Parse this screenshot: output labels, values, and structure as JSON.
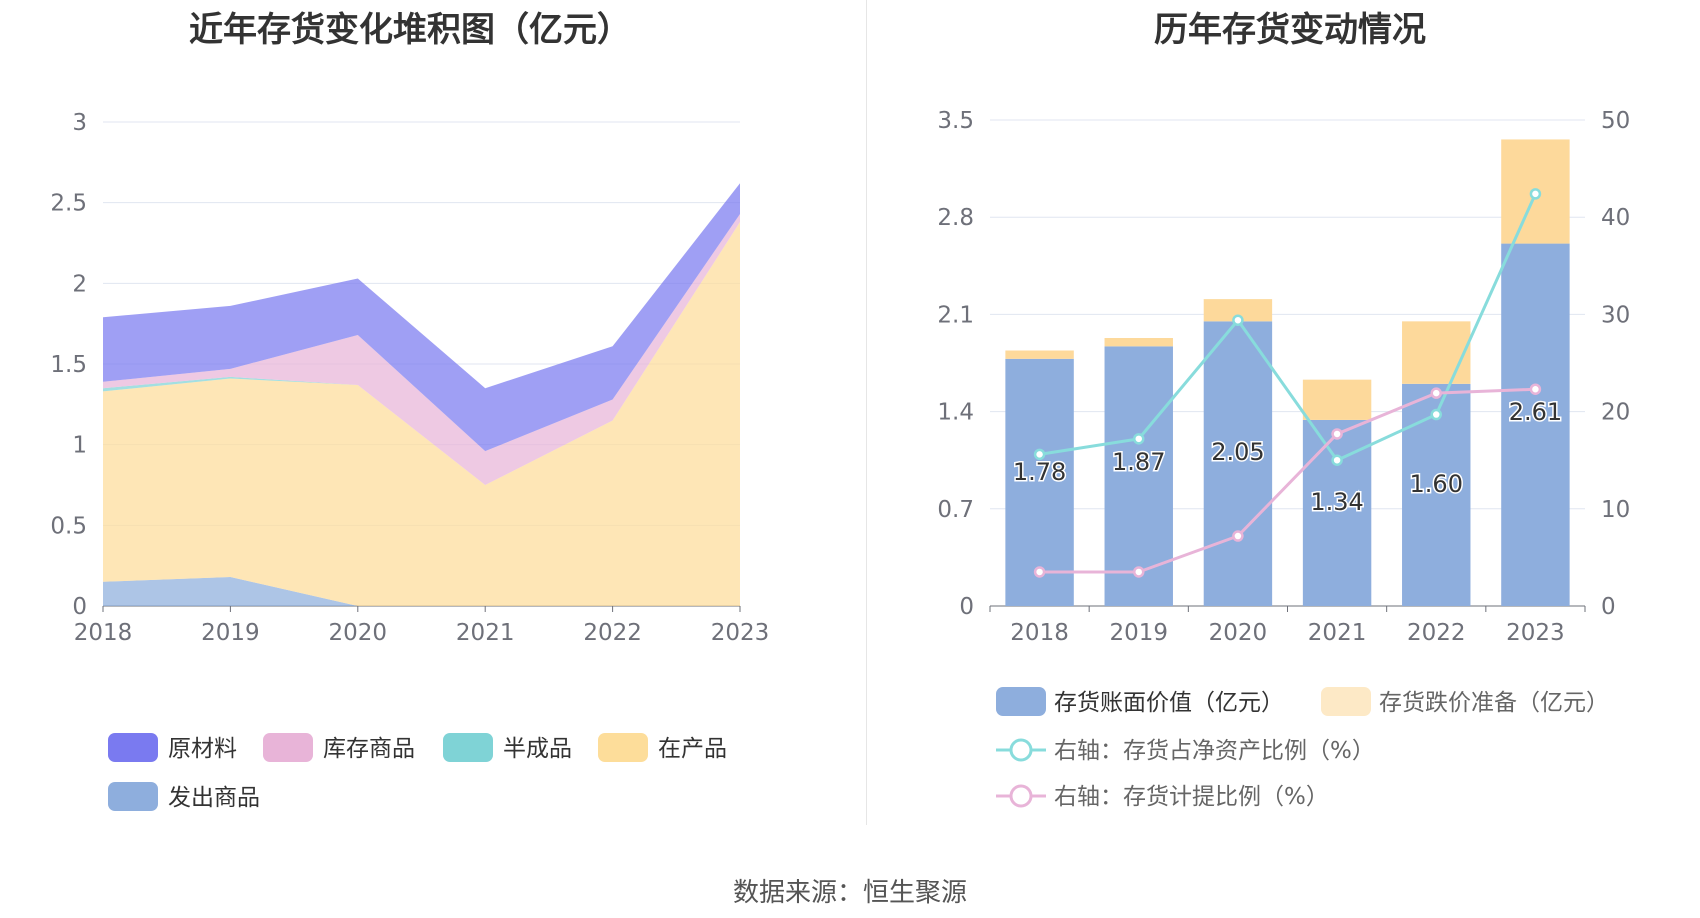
{
  "source_text": "数据来源：恒生聚源",
  "chart_data": [
    {
      "type": "area",
      "stacked": true,
      "title": "近年存货变化堆积图（亿元）",
      "x": [
        "2018",
        "2019",
        "2020",
        "2021",
        "2022",
        "2023"
      ],
      "ylim": [
        0,
        3
      ],
      "yticks": [
        "0",
        "0.5",
        "1",
        "1.5",
        "2",
        "2.5",
        "3"
      ],
      "grid": true,
      "legend_position": "bottom",
      "series": [
        {
          "name": "发出商品",
          "color": "#8eaedd",
          "values": [
            0.15,
            0.18,
            0.0,
            0.0,
            0.0,
            0.0
          ]
        },
        {
          "name": "在产品",
          "color": "#fddd9a",
          "values": [
            1.18,
            1.23,
            1.37,
            0.75,
            1.15,
            2.38
          ]
        },
        {
          "name": "半成品",
          "color": "#7fd3d6",
          "values": [
            0.02,
            0.01,
            0.0,
            0.0,
            0.0,
            0.0
          ]
        },
        {
          "name": "库存商品",
          "color": "#e8b4d8",
          "values": [
            0.04,
            0.05,
            0.31,
            0.21,
            0.13,
            0.05
          ]
        },
        {
          "name": "原材料",
          "color": "#7a7af0",
          "values": [
            0.4,
            0.39,
            0.35,
            0.39,
            0.33,
            0.19
          ]
        }
      ],
      "legend_order": [
        "原材料",
        "库存商品",
        "半成品",
        "在产品",
        "发出商品"
      ]
    },
    {
      "type": "bar",
      "stacked": true,
      "title": "历年存货变动情况",
      "x": [
        "2018",
        "2019",
        "2020",
        "2021",
        "2022",
        "2023"
      ],
      "ylim": [
        0,
        3.5
      ],
      "yticks": [
        "0",
        "0.7",
        "1.4",
        "2.1",
        "2.8",
        "3.5"
      ],
      "y2lim": [
        0,
        50
      ],
      "y2ticks": [
        "0",
        "10",
        "20",
        "30",
        "40",
        "50"
      ],
      "grid": true,
      "legend_position": "bottom",
      "bars": [
        {
          "name": "存货账面价值（亿元）",
          "color": "#8eaedd",
          "values": [
            1.78,
            1.87,
            2.05,
            1.34,
            1.6,
            2.61
          ],
          "labels": [
            "1.78",
            "1.87",
            "2.05",
            "1.34",
            "1.60",
            "2.61"
          ]
        },
        {
          "name": "存货跌价准备（亿元）",
          "color": "#fdd99b",
          "values": [
            0.06,
            0.06,
            0.16,
            0.29,
            0.45,
            0.75
          ]
        }
      ],
      "lines": [
        {
          "name": "右轴：存货占净资产比例（%）",
          "color": "#88dcdc",
          "axis": "right",
          "values": [
            15.6,
            17.2,
            29.4,
            15.0,
            19.7,
            42.4
          ]
        },
        {
          "name": "右轴：存货计提比例（%）",
          "color": "#e8b4d8",
          "axis": "right",
          "values": [
            3.5,
            3.5,
            7.2,
            17.7,
            21.9,
            22.3
          ]
        }
      ]
    }
  ]
}
